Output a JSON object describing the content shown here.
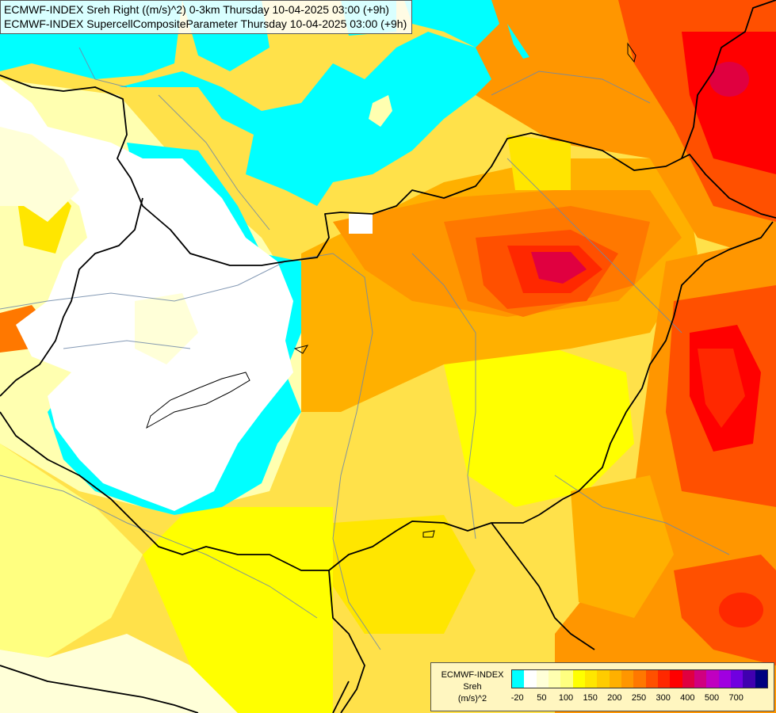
{
  "title_lines": [
    "ECMWF-INDEX Sreh Right ((m/s)^2) 0-3km Thursday 10-04-2025 03:00 (+9h)",
    "ECMWF-INDEX SupercellCompositeParameter Thursday 10-04-2025 03:00 (+9h)"
  ],
  "legend": {
    "model": "ECMWF-INDEX",
    "parameter": "Sreh",
    "unit": "(m/s)^2",
    "colors": [
      "#00ffff",
      "#ffffff",
      "#ffffd8",
      "#ffffb0",
      "#ffff80",
      "#ffff00",
      "#ffe600",
      "#ffcc00",
      "#ffb000",
      "#ff9600",
      "#ff7800",
      "#ff5000",
      "#ff2800",
      "#ff0000",
      "#e00040",
      "#d00080",
      "#c000c0",
      "#a000e0",
      "#7000e0",
      "#4000b0",
      "#000080"
    ],
    "ticks": [
      "-20",
      "50",
      "100",
      "150",
      "200",
      "250",
      "300",
      "400",
      "500",
      "700"
    ],
    "tick_index": [
      0.5,
      2.5,
      4.5,
      6.5,
      8.5,
      10.5,
      12.5,
      14.5,
      16.5,
      18.5
    ]
  },
  "colors": {
    "cyan": "#00ffff",
    "white": "#ffffff",
    "pale_yellow": "#ffffb0",
    "yellow": "#ffff00",
    "gold": "#ffcc00",
    "orange": "#ff9600",
    "dark_orange": "#ff5000",
    "red": "#ff0000",
    "crimson": "#e00040"
  }
}
